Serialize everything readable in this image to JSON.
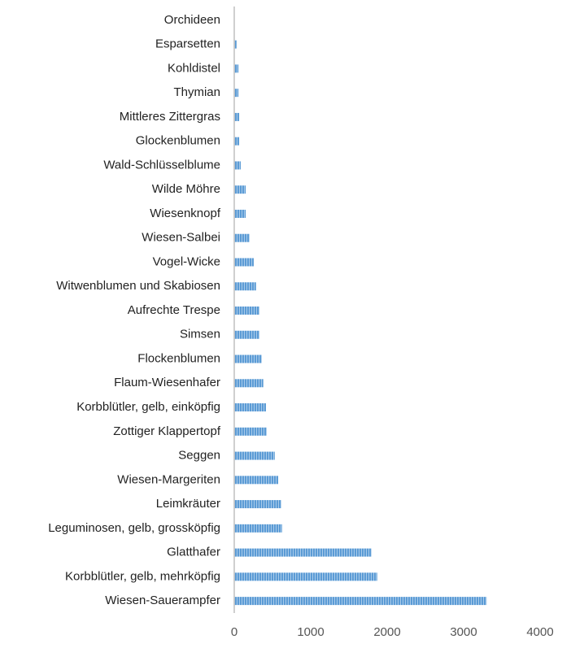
{
  "chart_data": {
    "type": "barh",
    "categories": [
      "Orchideen",
      "Esparsetten",
      "Kohldistel",
      "Thymian",
      "Mittleres Zittergras",
      "Glockenblumen",
      "Wald-Schlüsselblume",
      "Wilde Möhre",
      "Wiesenknopf",
      "Wiesen-Salbei",
      "Vogel-Wicke",
      "Witwenblumen und Skabiosen",
      "Aufrechte Trespe",
      "Simsen",
      "Flockenblumen",
      "Flaum-Wiesenhafer",
      "Korbblütler, gelb, einköpfig",
      "Zottiger Klappertopf",
      "Seggen",
      "Wiesen-Margeriten",
      "Leimkräuter",
      "Leguminosen, gelb, grossköpfig",
      "Glatthafer",
      "Korbblütler, gelb, mehrköpfig",
      "Wiesen-Sauerampfer"
    ],
    "values": [
      5,
      30,
      55,
      55,
      65,
      65,
      85,
      150,
      150,
      200,
      255,
      285,
      330,
      330,
      360,
      380,
      415,
      425,
      530,
      575,
      615,
      625,
      1795,
      1870,
      3300
    ],
    "color": "#5b9bd5",
    "xlim": [
      0,
      4000
    ],
    "xticks": [
      0,
      1000,
      2000,
      3000,
      4000
    ],
    "grid": false
  }
}
